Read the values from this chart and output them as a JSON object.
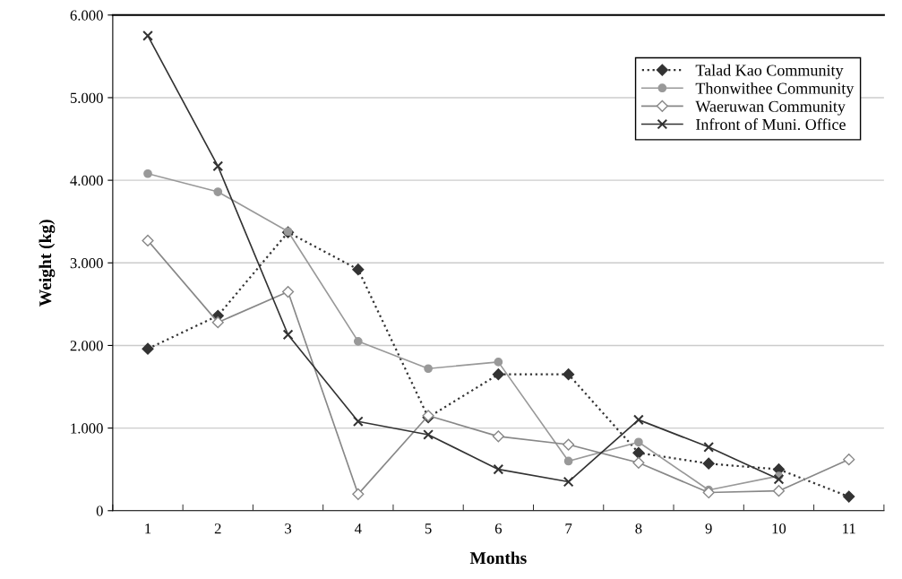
{
  "chart_data": {
    "type": "line",
    "xlabel": "Months",
    "ylabel": "Weight (kg)",
    "categories": [
      "1",
      "2",
      "3",
      "4",
      "5",
      "6",
      "7",
      "8",
      "9",
      "10",
      "11"
    ],
    "series": [
      {
        "name": "Talad Kao Community",
        "color": "#333333",
        "marker": "diamond",
        "line_style": "dotted",
        "values": [
          1960,
          2360,
          3370,
          2920,
          1130,
          1650,
          1650,
          700,
          570,
          500,
          170
        ]
      },
      {
        "name": "Thonwithee Community",
        "color": "#999999",
        "marker": "circle",
        "line_style": "solid",
        "values": [
          4080,
          3860,
          3380,
          2050,
          1720,
          1800,
          600,
          830,
          250,
          420,
          null
        ]
      },
      {
        "name": "Waeruwan Community",
        "color": "#888888",
        "marker": "diamond",
        "line_style": "solid",
        "values": [
          3270,
          2280,
          2650,
          200,
          1150,
          900,
          800,
          580,
          220,
          240,
          620
        ]
      },
      {
        "name": "Infront of Muni. Office",
        "color": "#333333",
        "marker": "cross",
        "line_style": "solid",
        "values": [
          5750,
          4170,
          2130,
          1080,
          920,
          500,
          350,
          1100,
          770,
          380,
          null
        ]
      }
    ],
    "ylim": [
      0,
      6000
    ],
    "yticks": [
      0,
      {
        "value": 1000,
        "label": "1.000"
      },
      {
        "value": 2000,
        "label": "2.000"
      },
      {
        "value": 3000,
        "label": "3.000"
      },
      {
        "value": 4000,
        "label": "4.000"
      },
      {
        "value": 5000,
        "label": "5.000"
      },
      {
        "value": 6000,
        "label": "6.000"
      }
    ],
    "grid": "y",
    "legend": "top right"
  }
}
